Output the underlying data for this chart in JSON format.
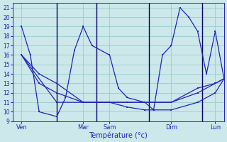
{
  "background_color": "#cce8ea",
  "grid_color": "#99cccc",
  "line_color": "#2222bb",
  "sep_line_color": "#000066",
  "xlabel": "Température (°c)",
  "ylim": [
    9,
    21.5
  ],
  "ytick_min": 9,
  "ytick_max": 21,
  "xlim": [
    0,
    24
  ],
  "x_ticks": [
    1,
    8,
    11,
    18,
    23
  ],
  "x_labels": [
    "Ven",
    "Mar",
    "Sam",
    "Dim",
    "Lun"
  ],
  "vlines": [
    5,
    9.5,
    15.5,
    21.5
  ],
  "series": [
    {
      "x": [
        1,
        2,
        3,
        5,
        6,
        7,
        8,
        9,
        11,
        12,
        13,
        15,
        16,
        17,
        18,
        19,
        20,
        21,
        22,
        23,
        24
      ],
      "y": [
        19,
        16,
        10,
        9.5,
        11.5,
        16.5,
        19,
        17,
        16,
        12.5,
        11.5,
        11,
        10.2,
        16,
        17,
        21,
        20,
        18.5,
        14,
        18.5,
        13.5
      ]
    },
    {
      "x": [
        1,
        3,
        5,
        8,
        11,
        13,
        15,
        18,
        21,
        23,
        24
      ],
      "y": [
        16,
        14,
        13,
        11,
        11,
        11,
        11,
        11,
        12.5,
        13,
        13.5
      ]
    },
    {
      "x": [
        1,
        3,
        5,
        8,
        11,
        13,
        15,
        18,
        21,
        23,
        24
      ],
      "y": [
        16,
        13,
        12,
        11,
        11,
        11,
        11,
        11,
        12,
        13,
        13.5
      ]
    },
    {
      "x": [
        1,
        5,
        8,
        11,
        13,
        15,
        18,
        21,
        23,
        24
      ],
      "y": [
        16,
        11,
        11,
        11,
        10.5,
        10.2,
        10.2,
        11,
        12,
        13.5
      ]
    }
  ]
}
